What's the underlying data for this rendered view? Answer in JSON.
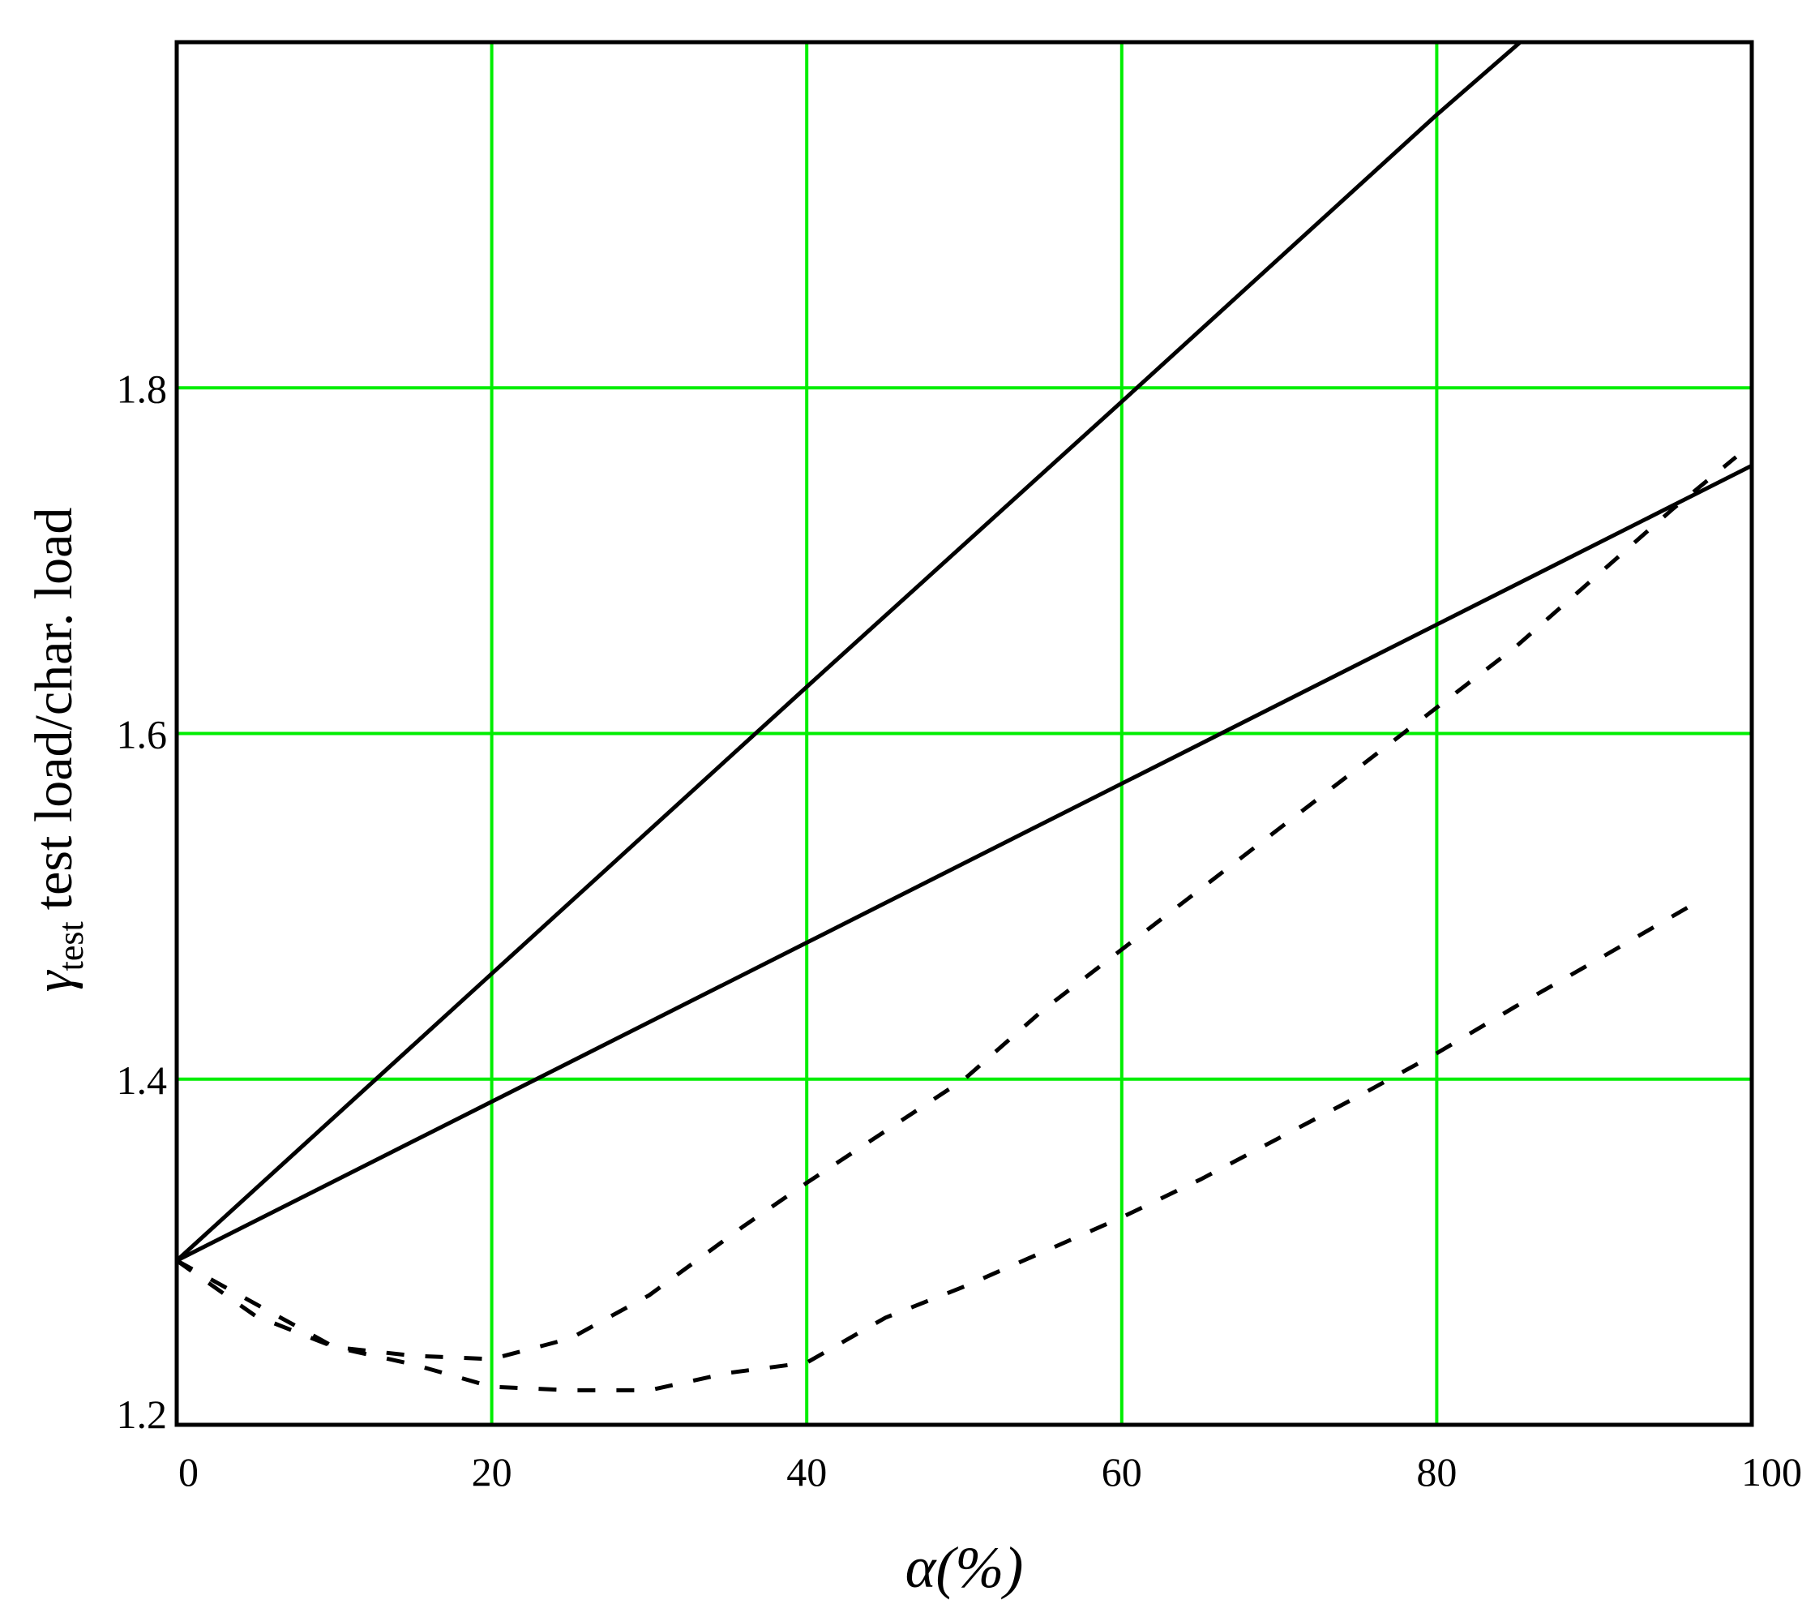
{
  "chart_data": {
    "type": "line",
    "title": "",
    "xlabel": "α(%)",
    "ylabel": {
      "symbol": "γ",
      "subscript": "test",
      "text": "test load/char. load"
    },
    "xlim": [
      0,
      100
    ],
    "ylim": [
      1.2,
      2.0
    ],
    "x_ticks": [
      "0",
      "20",
      "40",
      "60",
      "80",
      "100"
    ],
    "y_ticks": [
      "1.2",
      "1.4",
      "1.6",
      "1.8"
    ],
    "x_grid": [
      20,
      40,
      60,
      80
    ],
    "y_grid": [
      1.4,
      1.6,
      1.8
    ],
    "grid": true,
    "grid_color": "#00ee00",
    "line_color": "#000000",
    "series": [
      {
        "style": "solid",
        "x": [
          0,
          20,
          40,
          60,
          80,
          85.3
        ],
        "y": [
          1.295,
          1.461,
          1.627,
          1.792,
          1.958,
          2.0
        ]
      },
      {
        "style": "solid",
        "x": [
          0,
          20,
          40,
          60,
          80,
          100
        ],
        "y": [
          1.295,
          1.387,
          1.479,
          1.571,
          1.663,
          1.755
        ]
      },
      {
        "style": "dotted",
        "x": [
          0,
          5,
          10,
          15,
          20,
          25,
          30,
          36,
          40,
          50,
          55,
          60,
          65,
          70,
          75,
          80,
          85,
          90,
          95,
          99
        ],
        "y": [
          1.295,
          1.263,
          1.245,
          1.24,
          1.238,
          1.25,
          1.275,
          1.315,
          1.34,
          1.4,
          1.44,
          1.475,
          1.51,
          1.545,
          1.58,
          1.615,
          1.65,
          1.69,
          1.73,
          1.76
        ]
      },
      {
        "style": "dotted",
        "x": [
          0,
          5,
          10,
          15,
          20,
          25,
          30,
          35,
          40,
          45,
          50,
          55,
          60,
          65,
          70,
          75,
          80,
          85,
          90,
          97
        ],
        "y": [
          1.295,
          1.27,
          1.245,
          1.235,
          1.222,
          1.22,
          1.22,
          1.23,
          1.236,
          1.262,
          1.28,
          1.3,
          1.32,
          1.342,
          1.366,
          1.39,
          1.415,
          1.442,
          1.468,
          1.505
        ]
      }
    ]
  }
}
